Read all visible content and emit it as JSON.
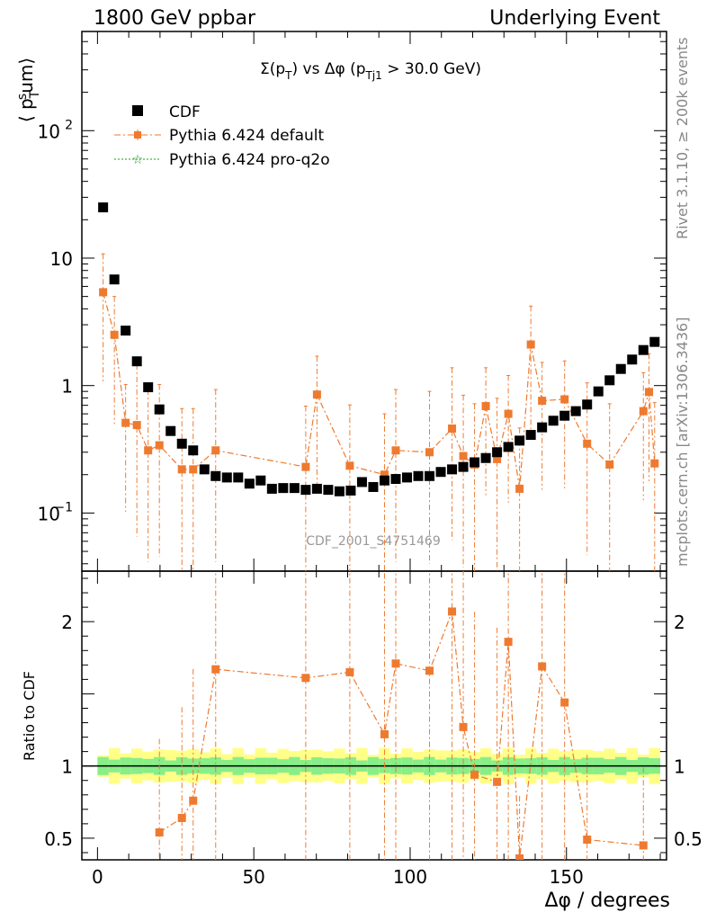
{
  "header": {
    "left": "1800 GeV ppbar",
    "right": "Underlying Event"
  },
  "side": {
    "rivet": "Rivet 3.1.10, ≥ 200k events",
    "mcplots": "mcplots.cern.ch [arXiv:1306.3436]"
  },
  "chart_data": [
    {
      "type": "scatter",
      "title": "Σ(p_T) vs Δφ (p_Tj1 > 30.0 GeV)",
      "ylabel": "⟨ p_T^s um⟩",
      "xlabel": "",
      "yscale": "log",
      "ylim": [
        0.035,
        600
      ],
      "xlim": [
        -5,
        182
      ],
      "watermark": "CDF_2001_S4751469",
      "legend_position": "top-left",
      "colors": {
        "cdf": "#000000",
        "default": "#ee7a30",
        "proq2o": "#1a9e1a"
      },
      "x": [
        1.8,
        5.4,
        9,
        12.6,
        16.2,
        19.8,
        23.4,
        27,
        30.6,
        34.2,
        37.8,
        41.4,
        45,
        48.6,
        52.2,
        55.8,
        59.4,
        63,
        66.6,
        70.2,
        73.8,
        77.4,
        81,
        84.6,
        88.2,
        91.8,
        95.4,
        99,
        102.6,
        106.2,
        109.8,
        113.4,
        117,
        120.6,
        124.2,
        127.8,
        131.4,
        135,
        138.6,
        142.2,
        145.8,
        149.4,
        153,
        156.6,
        160.2,
        163.8,
        167.4,
        171,
        174.6,
        178.2
      ],
      "series": [
        {
          "name": "CDF",
          "values": [
            25,
            6.8,
            2.7,
            1.55,
            0.97,
            0.65,
            0.44,
            0.35,
            0.31,
            0.22,
            0.195,
            0.19,
            0.19,
            0.17,
            0.18,
            0.155,
            0.157,
            0.157,
            0.152,
            0.155,
            0.152,
            0.148,
            0.15,
            0.175,
            0.16,
            0.18,
            0.185,
            0.19,
            0.195,
            0.195,
            0.21,
            0.22,
            0.23,
            0.25,
            0.27,
            0.3,
            0.33,
            0.37,
            0.41,
            0.47,
            0.53,
            0.58,
            0.63,
            0.71,
            0.9,
            1.1,
            1.35,
            1.6,
            1.9,
            2.2
          ]
        },
        {
          "name": "Pythia 6.424 default",
          "x": [
            1.8,
            5.4,
            9,
            12.6,
            16.2,
            19.8,
            27,
            30.6,
            37.8,
            66.6,
            70.2,
            80.7,
            91.8,
            95.4,
            106.2,
            113.4,
            117,
            120.6,
            124.2,
            127.8,
            131.4,
            135,
            138.6,
            142.2,
            149.4,
            156.6,
            163.8,
            174.6,
            176.4,
            178.2
          ],
          "values": [
            5.4,
            2.5,
            0.51,
            0.49,
            0.31,
            0.34,
            0.22,
            0.22,
            0.31,
            0.23,
            0.85,
            0.235,
            0.2,
            0.31,
            0.3,
            0.46,
            0.28,
            0.24,
            0.69,
            0.265,
            0.6,
            0.155,
            2.1,
            0.76,
            0.78,
            0.35,
            0.24,
            0.63,
            0.89,
            0.245
          ]
        },
        {
          "name": "Pythia 6.424 pro-q2o",
          "values": []
        }
      ]
    },
    {
      "type": "scatter",
      "ylabel": "Ratio to CDF",
      "xlabel": "Δφ / degrees",
      "ylim": [
        0.35,
        2.35
      ],
      "xlim": [
        -5,
        182
      ],
      "series": [
        {
          "name": "Pythia 6.424 default",
          "x": [
            19.8,
            27,
            30.6,
            37.8,
            66.6,
            80.7,
            91.8,
            95.4,
            106.2,
            113.4,
            117,
            120.6,
            127.8,
            131.4,
            135,
            142.2,
            149.4,
            156.6,
            174.6
          ],
          "values": [
            0.54,
            0.64,
            0.76,
            1.67,
            1.61,
            1.65,
            1.22,
            1.71,
            1.66,
            2.07,
            1.27,
            0.94,
            0.89,
            1.86,
            0.36,
            1.69,
            1.44,
            0.49,
            0.45
          ]
        }
      ],
      "bands": {
        "inner_frac": 0.05,
        "outer_frac": 0.1,
        "inner_color": "#88ee88",
        "outer_color": "#ffff88"
      }
    }
  ]
}
